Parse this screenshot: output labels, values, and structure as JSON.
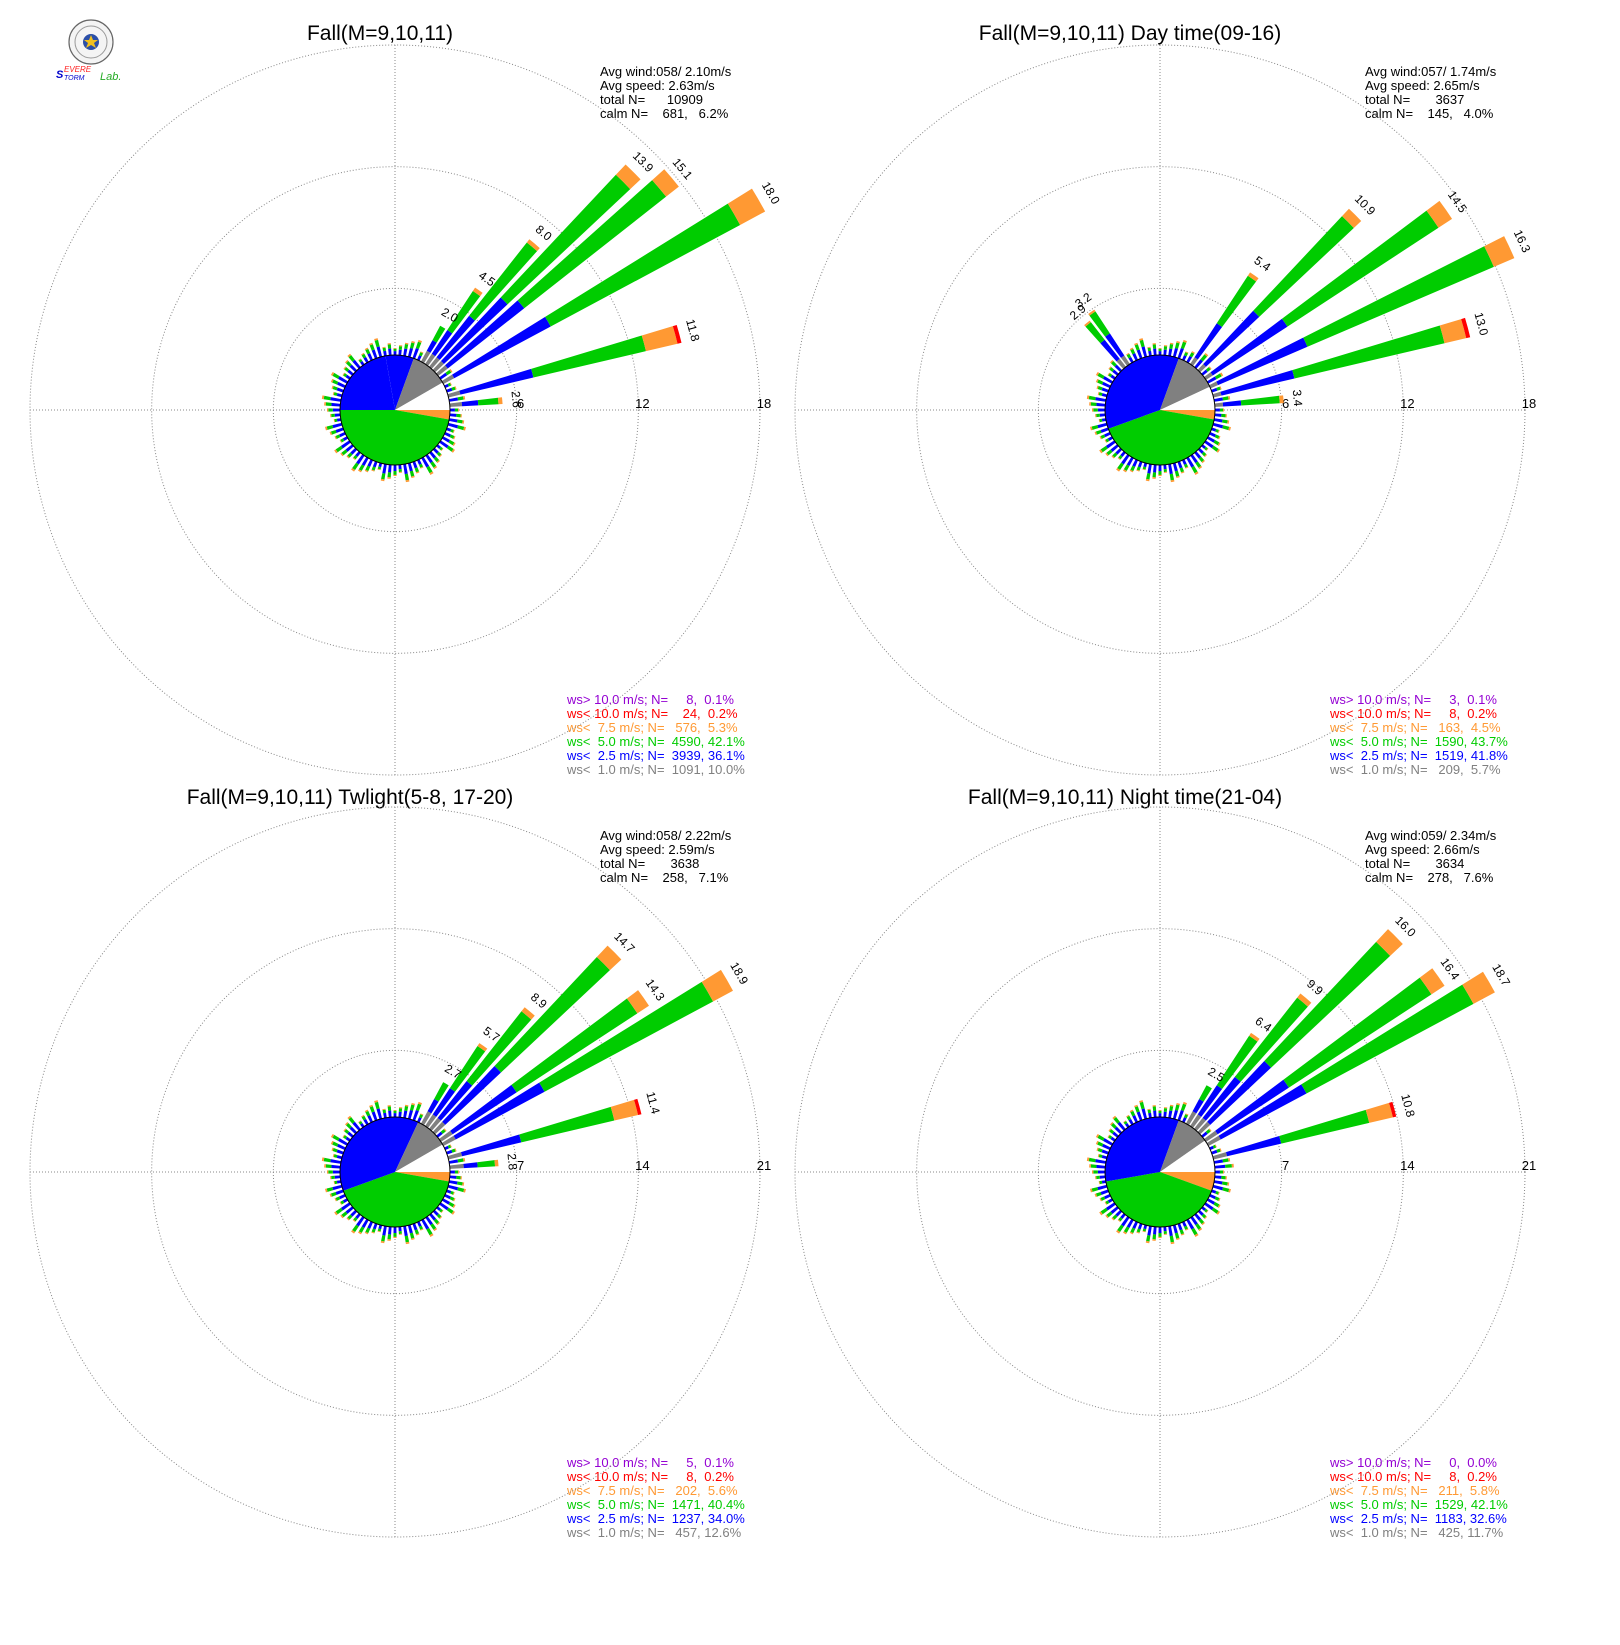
{
  "logo": {
    "text": "Severe Storm Lab."
  },
  "colors": {
    "gt10": "#9400d3",
    "lt10": "#ff0000",
    "lt7_5": "#ff9933",
    "lt5": "#00cc00",
    "lt2_5": "#0000ff",
    "lt1": "#808080"
  },
  "chart_data": [
    {
      "type": "windrose",
      "title": "Fall(M=9,10,11)",
      "rings": [
        6,
        12,
        18
      ],
      "rmax": 18,
      "stats": [
        "Avg wind:058/ 2.10m/s",
        "Avg speed: 2.63m/s",
        "total N=      10909",
        "calm N=    681,   6.2%"
      ],
      "legend": [
        "ws> 10.0 m/s; N=     8,  0.1%",
        "ws< 10.0 m/s; N=    24,  0.2%",
        "ws<  7.5 m/s; N=   576,  5.3%",
        "ws<  5.0 m/s; N=  4590, 42.1%",
        "ws<  2.5 m/s; N=  3939, 36.1%",
        "ws<  1.0 m/s; N=  1091, 10.0%"
      ],
      "bar_labels": [
        {
          "dir": 30,
          "value": "2.0"
        },
        {
          "dir": 35,
          "value": "4.5"
        },
        {
          "dir": 40,
          "value": "8.0"
        },
        {
          "dir": 45,
          "value": "13.9"
        },
        {
          "dir": 50,
          "value": "15.1"
        },
        {
          "dir": 60,
          "value": "18.0"
        },
        {
          "dir": 75,
          "value": "11.8"
        },
        {
          "dir": 85,
          "value": "2.6"
        }
      ],
      "main_dirs": [
        {
          "dir": 30,
          "total": 2.0,
          "parts": [
            0.6,
            0.6,
            0.8,
            0.0,
            0.0,
            0.0
          ]
        },
        {
          "dir": 35,
          "total": 4.5,
          "parts": [
            0.6,
            1.4,
            2.3,
            0.2,
            0.0,
            0.0
          ]
        },
        {
          "dir": 40,
          "total": 8.0,
          "parts": [
            0.6,
            2.6,
            4.6,
            0.2,
            0.0,
            0.0
          ]
        },
        {
          "dir": 45,
          "total": 13.9,
          "parts": [
            0.6,
            4.3,
            8.3,
            0.7,
            0.0,
            0.0
          ]
        },
        {
          "dir": 50,
          "total": 15.1,
          "parts": [
            0.6,
            4.8,
            8.9,
            0.8,
            0.0,
            0.0
          ]
        },
        {
          "dir": 60,
          "total": 18.0,
          "parts": [
            0.6,
            5.4,
            10.6,
            1.4,
            0.0,
            0.0
          ]
        },
        {
          "dir": 75,
          "total": 11.8,
          "parts": [
            0.6,
            3.7,
            5.7,
            1.6,
            0.2,
            0.0
          ]
        },
        {
          "dir": 85,
          "total": 2.6,
          "parts": [
            0.6,
            0.8,
            1.0,
            0.2,
            0.0,
            0.0
          ]
        }
      ],
      "sectors": [
        {
          "from": 90,
          "to": 100,
          "color": "lt7_5"
        },
        {
          "from": 100,
          "to": 270,
          "color": "lt5"
        },
        {
          "from": 270,
          "to": 350,
          "color": "lt2_5"
        },
        {
          "from": 350,
          "to": 20,
          "color": "lt2_5"
        },
        {
          "from": 20,
          "to": 60,
          "color": "lt1"
        },
        {
          "from": 60,
          "to": 90,
          "color": "white"
        }
      ]
    },
    {
      "type": "windrose",
      "title": "Fall(M=9,10,11) Day time(09-16)",
      "rings": [
        6,
        12,
        18
      ],
      "rmax": 18,
      "stats": [
        "Avg wind:057/ 1.74m/s",
        "Avg speed: 2.65m/s",
        "total N=       3637",
        "calm N=    145,   4.0%"
      ],
      "legend": [
        "ws> 10.0 m/s; N=     3,  0.1%",
        "ws< 10.0 m/s; N=     8,  0.2%",
        "ws<  7.5 m/s; N=   163,  4.5%",
        "ws<  5.0 m/s; N=  1590, 43.7%",
        "ws<  2.5 m/s; N=  1519, 41.8%",
        "ws<  1.0 m/s; N=   209,  5.7%"
      ],
      "bar_labels": [
        {
          "dir": 320,
          "value": "2.9"
        },
        {
          "dir": 325,
          "value": "3.2"
        },
        {
          "dir": 35,
          "value": "5.4"
        },
        {
          "dir": 45,
          "value": "10.9"
        },
        {
          "dir": 55,
          "value": "14.5"
        },
        {
          "dir": 65,
          "value": "16.3"
        },
        {
          "dir": 75,
          "value": "13.0"
        },
        {
          "dir": 85,
          "value": "3.4"
        }
      ],
      "main_dirs": [
        {
          "dir": 320,
          "total": 2.9,
          "parts": [
            0.5,
            1.2,
            1.1,
            0.1,
            0.0,
            0.0
          ]
        },
        {
          "dir": 325,
          "total": 3.2,
          "parts": [
            0.5,
            1.3,
            1.3,
            0.1,
            0.0,
            0.0
          ]
        },
        {
          "dir": 35,
          "total": 5.4,
          "parts": [
            0.4,
            2.0,
            2.8,
            0.2,
            0.0,
            0.0
          ]
        },
        {
          "dir": 45,
          "total": 10.9,
          "parts": [
            0.4,
            3.6,
            6.4,
            0.5,
            0.0,
            0.0
          ]
        },
        {
          "dir": 55,
          "total": 14.5,
          "parts": [
            0.4,
            4.4,
            8.9,
            0.8,
            0.0,
            0.0
          ]
        },
        {
          "dir": 65,
          "total": 16.3,
          "parts": [
            0.4,
            4.8,
            10.0,
            1.1,
            0.0,
            0.0
          ]
        },
        {
          "dir": 75,
          "total": 13.0,
          "parts": [
            0.4,
            3.7,
            7.6,
            1.1,
            0.2,
            0.0
          ]
        },
        {
          "dir": 85,
          "total": 3.4,
          "parts": [
            0.4,
            0.9,
            1.9,
            0.2,
            0.0,
            0.0
          ]
        }
      ],
      "sectors": [
        {
          "from": 90,
          "to": 100,
          "color": "lt7_5"
        },
        {
          "from": 100,
          "to": 250,
          "color": "lt5"
        },
        {
          "from": 250,
          "to": 360,
          "color": "lt2_5"
        },
        {
          "from": 0,
          "to": 20,
          "color": "lt2_5"
        },
        {
          "from": 20,
          "to": 65,
          "color": "lt1"
        },
        {
          "from": 65,
          "to": 90,
          "color": "white"
        }
      ]
    },
    {
      "type": "windrose",
      "title": "Fall(M=9,10,11) Twlight(5-8, 17-20)",
      "rings": [
        7,
        14,
        21
      ],
      "rmax": 21,
      "stats": [
        "Avg wind:058/ 2.22m/s",
        "Avg speed: 2.59m/s",
        "total N=       3638",
        "calm N=    258,   7.1%"
      ],
      "legend": [
        "ws> 10.0 m/s; N=     5,  0.1%",
        "ws< 10.0 m/s; N=     8,  0.2%",
        "ws<  7.5 m/s; N=   202,  5.6%",
        "ws<  5.0 m/s; N=  1471, 40.4%",
        "ws<  2.5 m/s; N=  1237, 34.0%",
        "ws<  1.0 m/s; N=   457, 12.6%"
      ],
      "bar_labels": [
        {
          "dir": 30,
          "value": "2.7"
        },
        {
          "dir": 35,
          "value": "5.7"
        },
        {
          "dir": 40,
          "value": "8.9"
        },
        {
          "dir": 45,
          "value": "14.7"
        },
        {
          "dir": 55,
          "value": "14.3"
        },
        {
          "dir": 60,
          "value": "18.9"
        },
        {
          "dir": 75,
          "value": "11.4"
        },
        {
          "dir": 85,
          "value": "2.8"
        }
      ],
      "main_dirs": [
        {
          "dir": 30,
          "total": 2.7,
          "parts": [
            0.8,
            0.8,
            1.1,
            0.0,
            0.0,
            0.0
          ]
        },
        {
          "dir": 35,
          "total": 5.7,
          "parts": [
            0.8,
            1.8,
            2.9,
            0.2,
            0.0,
            0.0
          ]
        },
        {
          "dir": 40,
          "total": 8.9,
          "parts": [
            0.8,
            2.7,
            5.1,
            0.3,
            0.0,
            0.0
          ]
        },
        {
          "dir": 45,
          "total": 14.7,
          "parts": [
            0.8,
            4.4,
            8.6,
            0.9,
            0.0,
            0.0
          ]
        },
        {
          "dir": 55,
          "total": 14.3,
          "parts": [
            0.8,
            4.4,
            8.3,
            0.8,
            0.0,
            0.0
          ]
        },
        {
          "dir": 60,
          "total": 18.9,
          "parts": [
            0.8,
            5.8,
            11.0,
            1.3,
            0.0,
            0.0
          ]
        },
        {
          "dir": 75,
          "total": 11.4,
          "parts": [
            0.8,
            3.5,
            5.5,
            1.4,
            0.2,
            0.0
          ]
        },
        {
          "dir": 85,
          "total": 2.8,
          "parts": [
            0.8,
            0.8,
            1.0,
            0.2,
            0.0,
            0.0
          ]
        }
      ],
      "sectors": [
        {
          "from": 90,
          "to": 100,
          "color": "lt7_5"
        },
        {
          "from": 100,
          "to": 250,
          "color": "lt5"
        },
        {
          "from": 250,
          "to": 360,
          "color": "lt2_5"
        },
        {
          "from": 0,
          "to": 25,
          "color": "lt2_5"
        },
        {
          "from": 25,
          "to": 60,
          "color": "lt1"
        },
        {
          "from": 60,
          "to": 90,
          "color": "white"
        }
      ]
    },
    {
      "type": "windrose",
      "title": "Fall(M=9,10,11) Night time(21-04)",
      "rings": [
        7,
        14,
        21
      ],
      "rmax": 21,
      "stats": [
        "Avg wind:059/ 2.34m/s",
        "Avg speed: 2.66m/s",
        "total N=       3634",
        "calm N=    278,   7.6%"
      ],
      "legend": [
        "ws> 10.0 m/s; N=     0,  0.0%",
        "ws< 10.0 m/s; N=     8,  0.2%",
        "ws<  7.5 m/s; N=   211,  5.8%",
        "ws<  5.0 m/s; N=  1529, 42.1%",
        "ws<  2.5 m/s; N=  1183, 32.6%",
        "ws<  1.0 m/s; N=   425, 11.7%"
      ],
      "bar_labels": [
        {
          "dir": 30,
          "value": "2.5"
        },
        {
          "dir": 35,
          "value": "6.4"
        },
        {
          "dir": 40,
          "value": "9.9"
        },
        {
          "dir": 45,
          "value": "16.0"
        },
        {
          "dir": 55,
          "value": "16.4"
        },
        {
          "dir": 60,
          "value": "18.7"
        },
        {
          "dir": 75,
          "value": "10.8"
        }
      ],
      "main_dirs": [
        {
          "dir": 30,
          "total": 2.5,
          "parts": [
            0.8,
            0.8,
            0.9,
            0.0,
            0.0,
            0.0
          ]
        },
        {
          "dir": 35,
          "total": 6.4,
          "parts": [
            0.8,
            2.0,
            3.4,
            0.2,
            0.0,
            0.0
          ]
        },
        {
          "dir": 40,
          "total": 9.9,
          "parts": [
            0.8,
            3.0,
            5.8,
            0.3,
            0.0,
            0.0
          ]
        },
        {
          "dir": 45,
          "total": 16.0,
          "parts": [
            0.8,
            4.8,
            9.4,
            1.0,
            0.0,
            0.0
          ]
        },
        {
          "dir": 55,
          "total": 16.4,
          "parts": [
            0.8,
            4.9,
            9.8,
            0.9,
            0.0,
            0.0
          ]
        },
        {
          "dir": 60,
          "total": 18.7,
          "parts": [
            0.8,
            5.6,
            10.9,
            1.4,
            0.0,
            0.0
          ]
        },
        {
          "dir": 75,
          "total": 10.8,
          "parts": [
            0.8,
            3.2,
            5.2,
            1.4,
            0.2,
            0.0
          ]
        }
      ],
      "sectors": [
        {
          "from": 90,
          "to": 110,
          "color": "lt7_5"
        },
        {
          "from": 110,
          "to": 260,
          "color": "lt5"
        },
        {
          "from": 260,
          "to": 360,
          "color": "lt2_5"
        },
        {
          "from": 0,
          "to": 20,
          "color": "lt2_5"
        },
        {
          "from": 20,
          "to": 55,
          "color": "lt1"
        },
        {
          "from": 55,
          "to": 90,
          "color": "white"
        }
      ]
    }
  ]
}
